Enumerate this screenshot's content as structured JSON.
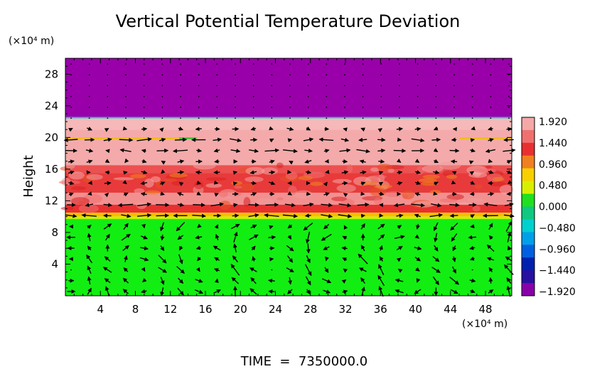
{
  "chart_data": {
    "type": "heatmap",
    "title": "Vertical Potential Temperature Deviation",
    "ylabel": "Height",
    "y_unit_label": "(×10⁴ m)",
    "x_unit_label": "(×10⁴ m)",
    "footer": "TIME  =  7350000.0",
    "x_ticks": [
      "4",
      "8",
      "12",
      "16",
      "20",
      "24",
      "28",
      "32",
      "36",
      "40",
      "44",
      "48"
    ],
    "y_ticks": [
      "4",
      "8",
      "12",
      "16",
      "20",
      "24",
      "28"
    ],
    "xlim": [
      0,
      51
    ],
    "ylim": [
      0,
      30
    ],
    "colorbar": {
      "labels": [
        "1.920",
        "1.440",
        "0.960",
        "0.480",
        "0.000",
        "−0.480",
        "−0.960",
        "−1.440",
        "−1.920"
      ],
      "colors": [
        "#f4a8a8",
        "#f07070",
        "#e83030",
        "#f08020",
        "#f8d000",
        "#d8f000",
        "#20e020",
        "#10c880",
        "#00d0d0",
        "#00a0e8",
        "#0060e0",
        "#0020b0",
        "#2810a0",
        "#8800a8"
      ]
    },
    "layers": [
      {
        "y0": 22.5,
        "y1": 30,
        "color": "#9900aa"
      },
      {
        "y0": 21.0,
        "y1": 22.5,
        "color": "#f6b8b8"
      },
      {
        "y0": 16.5,
        "y1": 21.0,
        "color": "#f4aaaa"
      },
      {
        "y0": 15.5,
        "y1": 16.5,
        "color": "#ec5050"
      },
      {
        "y0": 13.0,
        "y1": 15.5,
        "color": "#e83a3a"
      },
      {
        "y0": 11.5,
        "y1": 13.0,
        "color": "#f29090"
      },
      {
        "y0": 10.5,
        "y1": 11.5,
        "color": "#e83030"
      },
      {
        "y0": 10.0,
        "y1": 10.5,
        "color": "#f6c000"
      },
      {
        "y0": 9.7,
        "y1": 10.0,
        "color": "#c8f000"
      },
      {
        "y0": 0,
        "y1": 9.7,
        "color": "#12ee12"
      }
    ]
  }
}
